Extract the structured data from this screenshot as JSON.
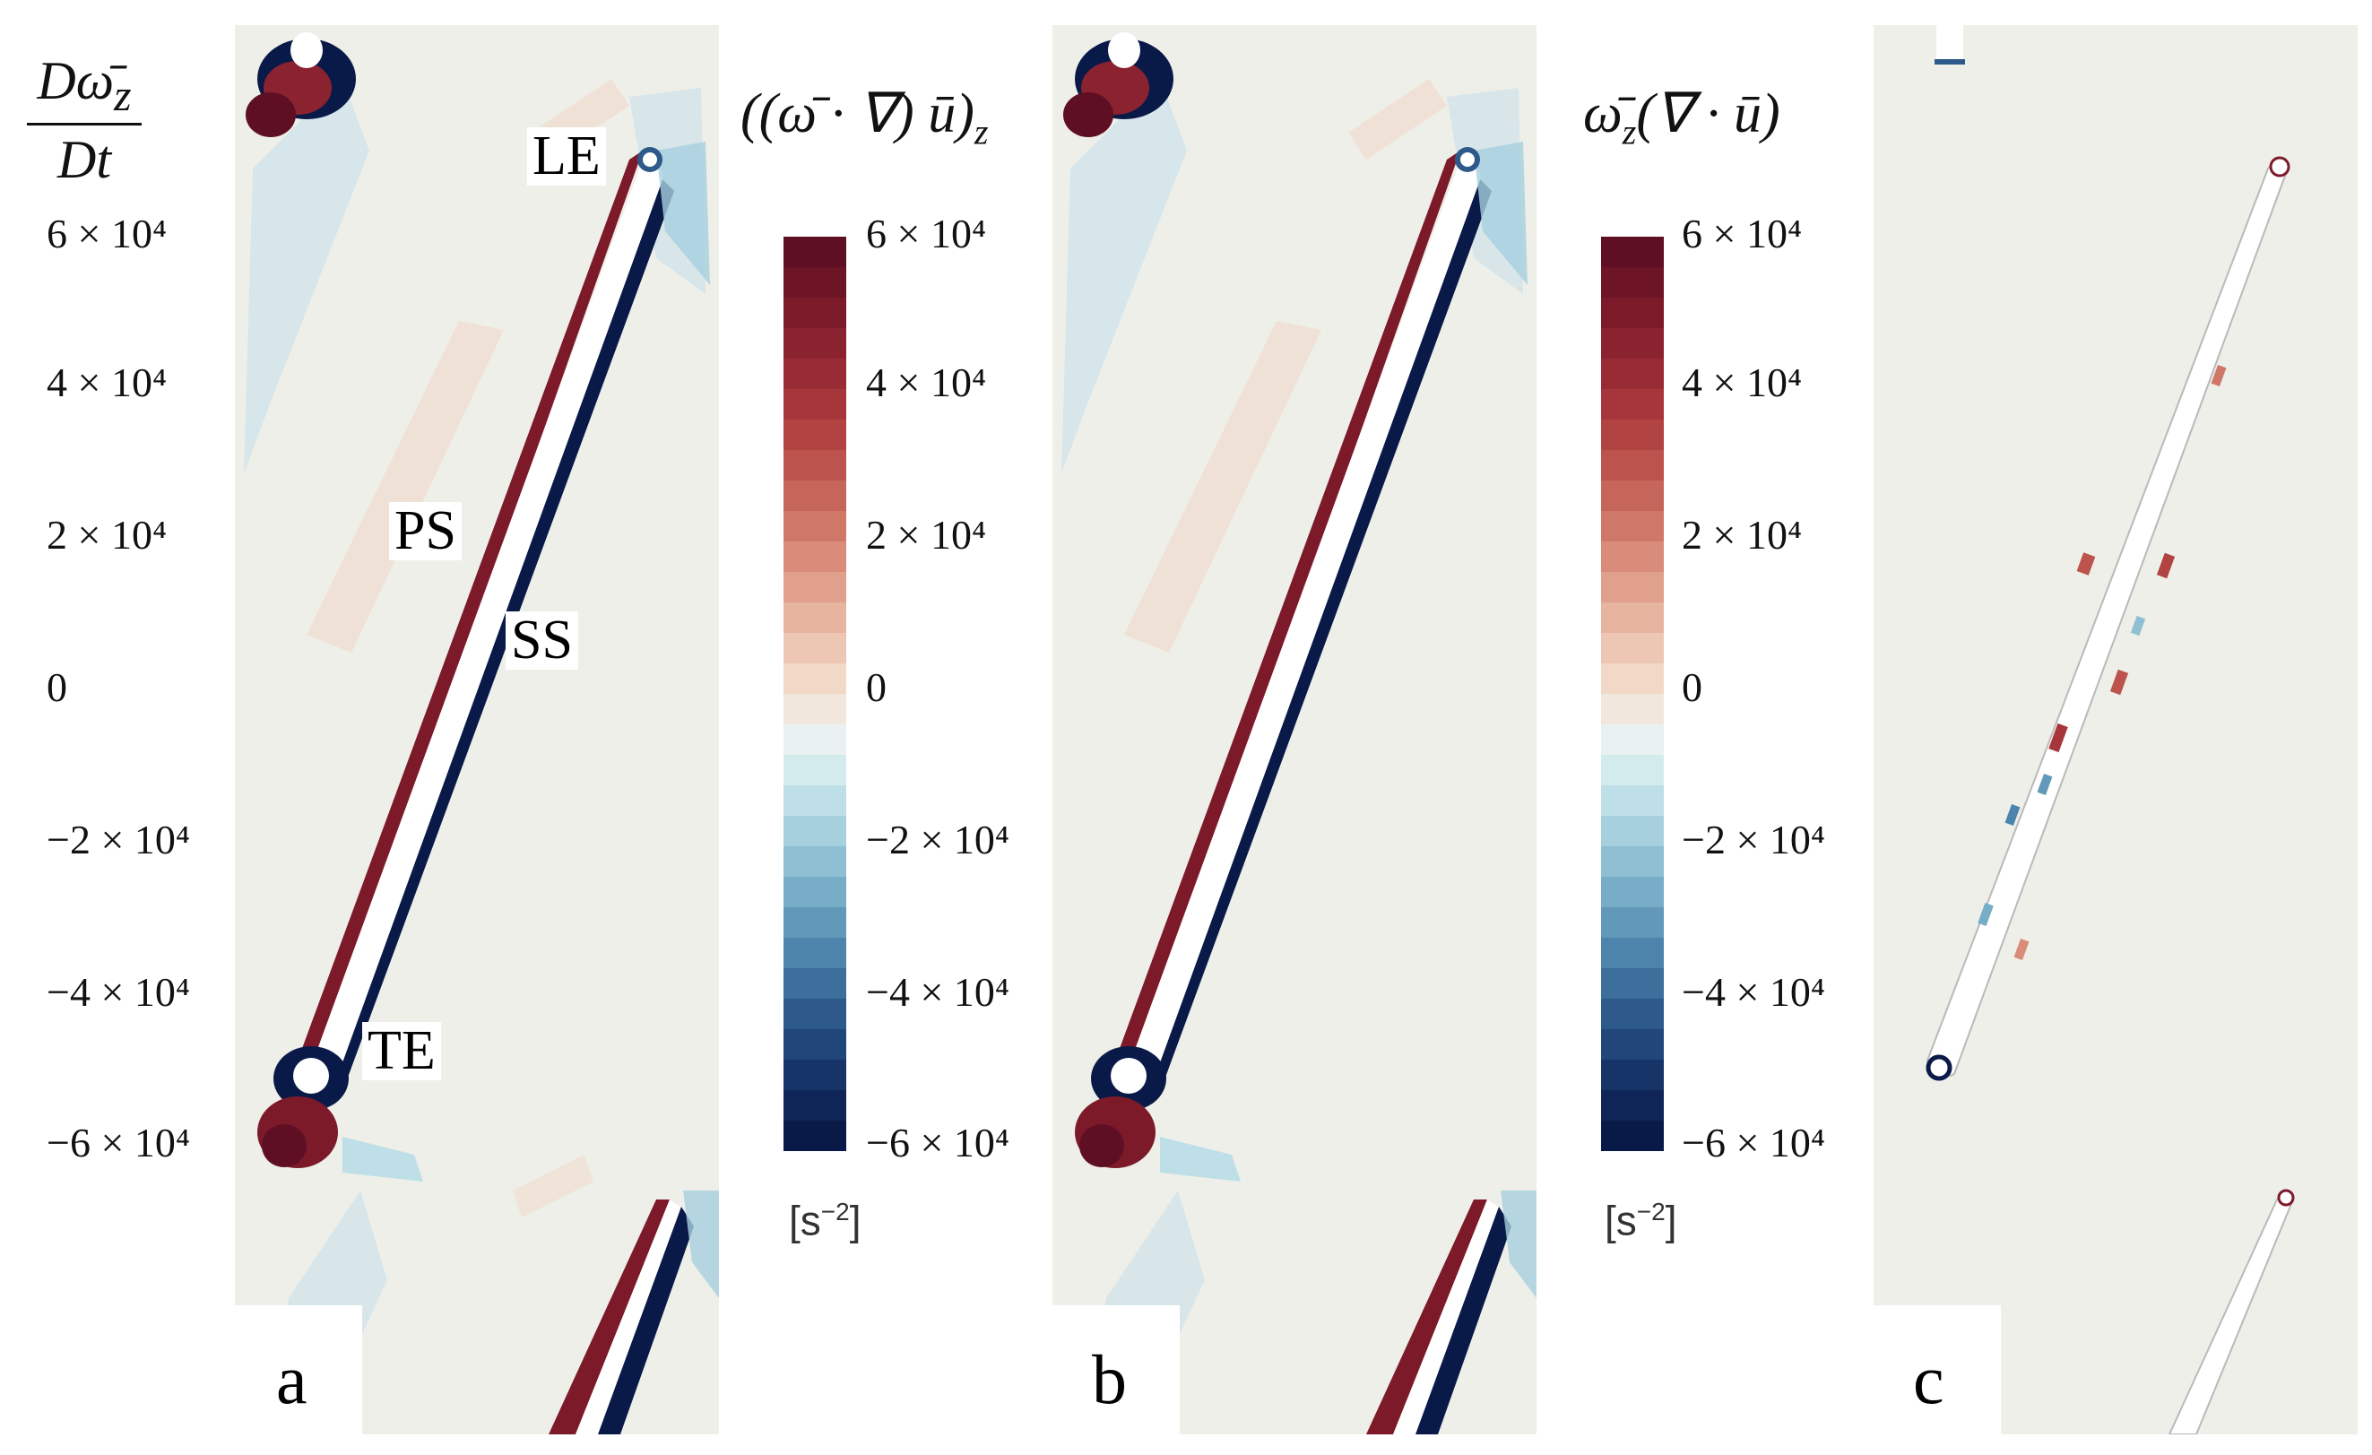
{
  "colorbar": {
    "ticks": [
      "6 × 10⁴",
      "4 × 10⁴",
      "2 × 10⁴",
      "0",
      "−2 × 10⁴",
      "−4 × 10⁴",
      "−6 × 10⁴"
    ],
    "unit_base": "[s",
    "unit_exp": "−2",
    "unit_close": "]",
    "range": [
      -60000,
      60000
    ],
    "levels": 24,
    "colors_top_to_bottom": [
      "#5e0f24",
      "#6d1426",
      "#7c1a2a",
      "#8b2230",
      "#992b35",
      "#a6363b",
      "#b24343",
      "#bd534d",
      "#c6655a",
      "#cf7868",
      "#d88c79",
      "#e0a08b",
      "#e7b49f",
      "#edc7b3",
      "#f1d8c7",
      "#f1e7dc",
      "#e9f1f1",
      "#d4ebee",
      "#bedfe7",
      "#a6d0de",
      "#8fbfd3",
      "#78adc7",
      "#6299ba",
      "#4d84ab",
      "#3c6f9b",
      "#2d5a8a",
      "#214679",
      "#173468",
      "#0f2557",
      "#0a1a48"
    ]
  },
  "panel_a": {
    "label": "a",
    "formula_num": "Dω̄",
    "formula_num_sub": "z",
    "formula_den": "Dt",
    "annotations": {
      "le": "LE",
      "ps": "PS",
      "ss": "SS",
      "te": "TE"
    }
  },
  "panel_b": {
    "label": "b",
    "formula_pre": "((ω̄ · ∇) ū)",
    "formula_sub": "z"
  },
  "panel_c": {
    "label": "c",
    "formula_pre": "ω̄",
    "formula_sub": "z",
    "formula_post": "(∇ · ū)"
  }
}
